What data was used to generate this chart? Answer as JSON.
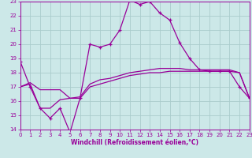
{
  "xlabel": "Windchill (Refroidissement éolien,°C)",
  "xlim": [
    0,
    23
  ],
  "ylim": [
    14,
    23
  ],
  "xticks": [
    0,
    1,
    2,
    3,
    4,
    5,
    6,
    7,
    8,
    9,
    10,
    11,
    12,
    13,
    14,
    15,
    16,
    17,
    18,
    19,
    20,
    21,
    22,
    23
  ],
  "yticks": [
    14,
    15,
    16,
    17,
    18,
    19,
    20,
    21,
    22,
    23
  ],
  "bg_color": "#cce8e8",
  "line_color": "#990099",
  "grid_color": "#aacccc",
  "line1_x": [
    0,
    1,
    2,
    3,
    4,
    5,
    6,
    7,
    8,
    9,
    10,
    11,
    12,
    13,
    14,
    15,
    16,
    17,
    18,
    19,
    20,
    21,
    22,
    23
  ],
  "line1_y": [
    18.8,
    17.0,
    15.5,
    14.8,
    15.5,
    13.8,
    16.2,
    20.0,
    19.8,
    20.0,
    21.0,
    23.1,
    22.8,
    23.0,
    22.2,
    21.7,
    20.1,
    19.0,
    18.2,
    18.1,
    18.1,
    18.1,
    17.0,
    16.2
  ],
  "line2_x": [
    0,
    1,
    2,
    3,
    4,
    5,
    6,
    7,
    8,
    9,
    10,
    11,
    12,
    13,
    14,
    15,
    16,
    17,
    18,
    19,
    20,
    21,
    22,
    23
  ],
  "line2_y": [
    17.0,
    17.3,
    16.8,
    16.8,
    16.8,
    16.2,
    16.2,
    17.0,
    17.2,
    17.4,
    17.6,
    17.8,
    17.9,
    18.0,
    18.0,
    18.1,
    18.1,
    18.1,
    18.1,
    18.1,
    18.1,
    18.1,
    18.0,
    16.2
  ],
  "line3_x": [
    0,
    1,
    2,
    3,
    4,
    5,
    6,
    7,
    8,
    9,
    10,
    11,
    12,
    13,
    14,
    15,
    16,
    17,
    18,
    19,
    20,
    21,
    22,
    23
  ],
  "line3_y": [
    17.0,
    17.2,
    15.5,
    15.5,
    16.1,
    16.2,
    16.3,
    17.2,
    17.5,
    17.6,
    17.8,
    18.0,
    18.1,
    18.2,
    18.3,
    18.3,
    18.3,
    18.2,
    18.2,
    18.2,
    18.2,
    18.2,
    18.0,
    16.2
  ]
}
